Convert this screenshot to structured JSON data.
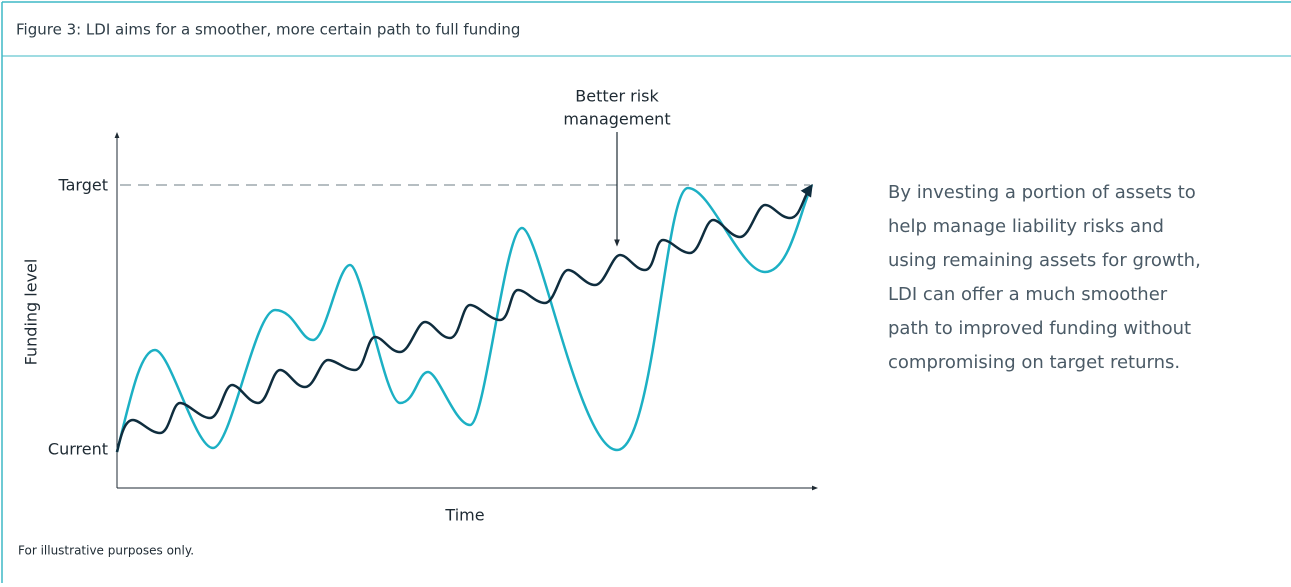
{
  "header": {
    "title": "Figure 3: LDI aims for a smoother, more certain path to full funding"
  },
  "diagram": {
    "y_axis_label": "Funding level",
    "x_axis_label": "Time",
    "target_label": "Target",
    "current_label": "Current",
    "annotation": [
      "Better risk",
      "management"
    ]
  },
  "description": [
    "By investing a portion of assets to",
    "help manage liability risks and",
    "using remaining assets for growth,",
    "LDI can offer a much smoother",
    "path to improved funding without",
    "compromising on target returns."
  ],
  "footnote": "For illustrative purposes only."
}
